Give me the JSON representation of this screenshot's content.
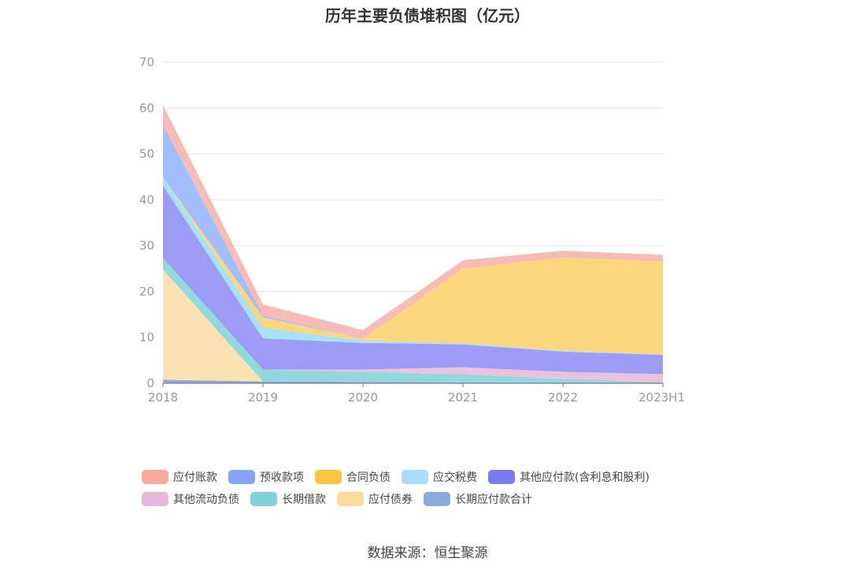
{
  "chart_data": {
    "type": "area",
    "stacked": true,
    "title": "历年主要负债堆积图（亿元）",
    "categories": [
      "2018",
      "2019",
      "2020",
      "2021",
      "2022",
      "2023H1"
    ],
    "ylim": [
      0,
      70
    ],
    "yticks": [
      0,
      10,
      20,
      30,
      40,
      50,
      60,
      70
    ],
    "grid": true,
    "legend_position": "bottom",
    "series": [
      {
        "name": "长期应付款合计",
        "color": "#8eaadb",
        "values": [
          0.8,
          0.4,
          0.3,
          0.2,
          0.2,
          0.2
        ]
      },
      {
        "name": "应付债券",
        "color": "#fde2b3",
        "values": [
          24.0,
          0,
          0,
          0,
          0,
          0
        ]
      },
      {
        "name": "长期借款",
        "color": "#93d8dc",
        "values": [
          2.5,
          2.6,
          2.2,
          1.8,
          0.8,
          0
        ]
      },
      {
        "name": "其他流动负债",
        "color": "#ebc2de",
        "values": [
          0,
          0,
          0.5,
          1.5,
          1.5,
          1.8
        ]
      },
      {
        "name": "其他应付款(含利息和股利)",
        "color": "#9c9cf7",
        "values": [
          15.8,
          6.8,
          5.8,
          5.0,
          4.4,
          4.2
        ]
      },
      {
        "name": "应交税费",
        "color": "#a9e1fb",
        "values": [
          1.8,
          2.4,
          0.5,
          0.2,
          0.2,
          0.1
        ]
      },
      {
        "name": "合同负债",
        "color": "#fdd77e",
        "values": [
          0,
          2.2,
          0.4,
          16.3,
          20.3,
          20.3
        ]
      },
      {
        "name": "预收款项",
        "color": "#a3bdfd",
        "values": [
          11.5,
          0.4,
          0,
          0,
          0,
          0
        ]
      },
      {
        "name": "应付账款",
        "color": "#f8bcb7",
        "values": [
          4.3,
          2.4,
          1.9,
          1.8,
          1.5,
          1.4
        ]
      }
    ]
  },
  "legend_rows": [
    [
      {
        "name": "应付账款",
        "color": "#fba99e"
      },
      {
        "name": "预收款项",
        "color": "#87a4fb"
      },
      {
        "name": "合同负债",
        "color": "#fcc53f"
      },
      {
        "name": "应交税费",
        "color": "#a8dcfa"
      },
      {
        "name": "其他应付款(含利息和股利)",
        "color": "#7a7af4"
      }
    ],
    [
      {
        "name": "其他流动负债",
        "color": "#e8b8da"
      },
      {
        "name": "长期借款",
        "color": "#7fd3d6"
      },
      {
        "name": "应付债券",
        "color": "#fcdb9c"
      },
      {
        "name": "长期应付款合计",
        "color": "#8aa9dc"
      }
    ]
  ],
  "source": "数据来源：恒生聚源"
}
